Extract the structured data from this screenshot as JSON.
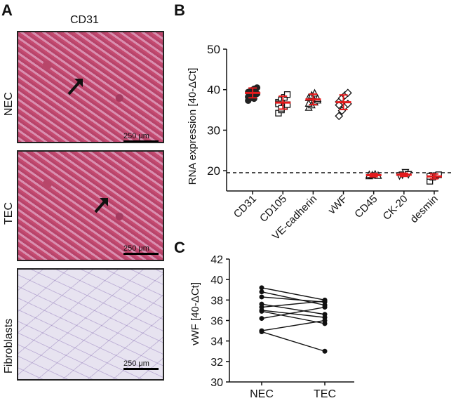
{
  "panel_a": {
    "letter": "A",
    "title": "CD31",
    "rows": [
      {
        "label": "NEC",
        "scale": "250 μm"
      },
      {
        "label": "TEC",
        "scale": "250 μm"
      },
      {
        "label": "Fibroblasts",
        "scale": "250 μm"
      }
    ]
  },
  "panel_b_letter": "B",
  "panel_c_letter": "C",
  "chart_data": [
    {
      "type": "scatter",
      "title": "",
      "ylabel": "RNA expression [40-ΔCt]",
      "ylim": [
        15,
        50
      ],
      "yticks": [
        20,
        30,
        40,
        50
      ],
      "threshold": 19.5,
      "categories": [
        "CD31",
        "CD105",
        "VE-cadherin",
        "vWF",
        "CD45",
        "CK-20",
        "desmin"
      ],
      "means": [
        39.2,
        36.8,
        37.6,
        36.9,
        18.9,
        19.0,
        18.6
      ],
      "sd": [
        1.2,
        1.6,
        1.3,
        1.8,
        0.4,
        0.4,
        0.6
      ],
      "points": [
        [
          37.3,
          38.0,
          38.6,
          39.0,
          39.4,
          39.8,
          40.2,
          40.5,
          38.2,
          39.6,
          37.8
        ],
        [
          34.2,
          35.0,
          35.8,
          36.3,
          36.9,
          37.5,
          38.1,
          38.8,
          36.5,
          35.4
        ],
        [
          35.6,
          36.2,
          36.9,
          37.4,
          38.0,
          38.6,
          39.1,
          37.8,
          36.6
        ],
        [
          33.5,
          34.8,
          35.9,
          36.5,
          37.0,
          37.9,
          38.6,
          39.2,
          36.2
        ],
        [
          18.7,
          18.9,
          19.1,
          18.8,
          19.0
        ],
        [
          18.8,
          19.0,
          19.6,
          19.1
        ],
        [
          17.4,
          18.4,
          18.8,
          19.0,
          18.6
        ]
      ],
      "markers": [
        "circle-filled",
        "square-open",
        "triangle-open",
        "diamond-open",
        "triangle-open",
        "triangle-down-open",
        "square-open"
      ]
    },
    {
      "type": "line",
      "ylabel": "vWF [40-ΔCt]",
      "ylim": [
        30,
        42
      ],
      "yticks": [
        30,
        32,
        34,
        36,
        38,
        40,
        42
      ],
      "categories": [
        "NEC",
        "TEC"
      ],
      "pairs": [
        [
          39.2,
          38.0
        ],
        [
          38.8,
          37.5
        ],
        [
          38.3,
          37.8
        ],
        [
          37.6,
          36.6
        ],
        [
          37.3,
          37.9
        ],
        [
          37.0,
          36.3
        ],
        [
          36.9,
          35.7
        ],
        [
          36.2,
          37.3
        ],
        [
          35.0,
          36.0
        ],
        [
          34.9,
          33.0
        ]
      ]
    }
  ]
}
